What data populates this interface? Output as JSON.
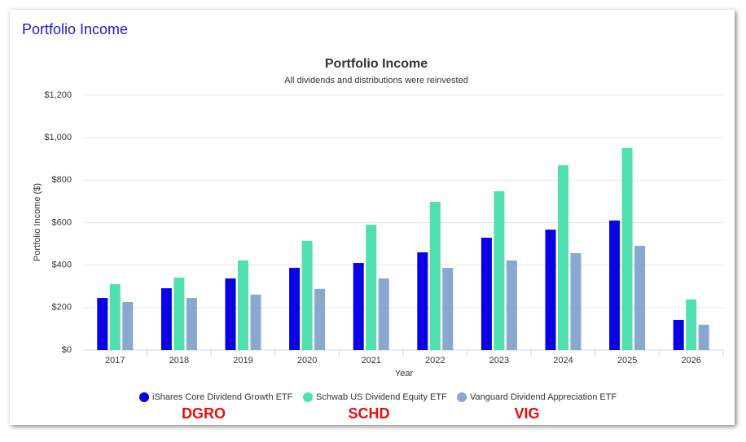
{
  "header": {
    "title": "Portfolio Income"
  },
  "chart_data": {
    "type": "bar",
    "title": "Portfolio Income",
    "subtitle": "All dividends and distributions were reinvested",
    "x_label": "Year",
    "y_label": "Portfolio Income ($)",
    "categories": [
      "2017",
      "2018",
      "2019",
      "2020",
      "2021",
      "2022",
      "2023",
      "2024",
      "2025",
      "2026"
    ],
    "series": [
      {
        "name": "iShares Core Dividend Growth ETF",
        "color": "#0a00e6",
        "values": [
          245,
          291,
          337,
          387,
          410,
          460,
          529,
          567,
          610,
          142
        ]
      },
      {
        "name": "Schwab US Dividend Equity ETF",
        "color": "#4fe0b0",
        "values": [
          310,
          341,
          422,
          514,
          590,
          698,
          748,
          870,
          951,
          238
        ]
      },
      {
        "name": "Vanguard Dividend Appreciation ETF",
        "color": "#88a8d0",
        "values": [
          226,
          245,
          261,
          288,
          337,
          387,
          422,
          456,
          491,
          119
        ]
      }
    ],
    "ylim": [
      0,
      1200
    ],
    "yticks": [
      {
        "value": 0,
        "label": "$0"
      },
      {
        "value": 200,
        "label": "$200"
      },
      {
        "value": 400,
        "label": "$400"
      },
      {
        "value": 600,
        "label": "$600"
      },
      {
        "value": 800,
        "label": "$800"
      },
      {
        "value": 1000,
        "label": "$1,000"
      },
      {
        "value": 1200,
        "label": "$1,200"
      }
    ],
    "grid": true,
    "legend": "bottom",
    "annotations": [
      "DGRO",
      "SCHD",
      "VIG"
    ]
  }
}
